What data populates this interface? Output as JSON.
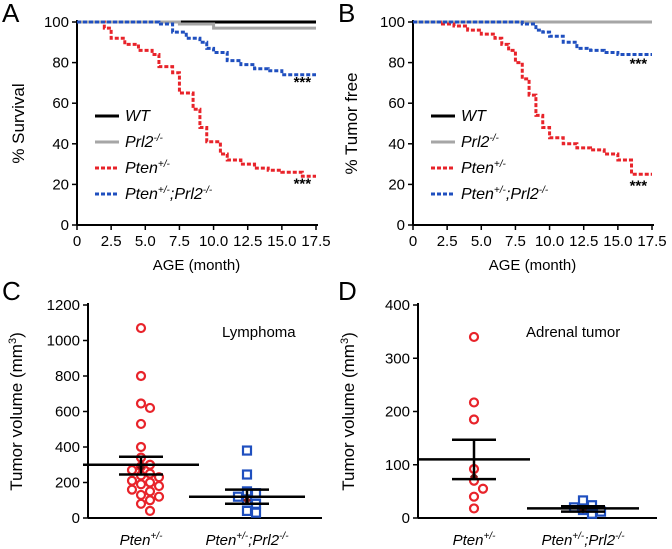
{
  "chart_data": [
    {
      "panel": "A",
      "type": "line",
      "step": true,
      "xlabel": "AGE (month)",
      "ylabel": "% Survival",
      "xlim": [
        0,
        17.5
      ],
      "ylim": [
        0,
        100
      ],
      "xticks": [
        "0",
        "2.5",
        "5.0",
        "7.5",
        "10.0",
        "12.5",
        "15.0",
        "17.5"
      ],
      "yticks": [
        "0",
        "20",
        "40",
        "60",
        "80",
        "100"
      ],
      "legend_position": "bottom-left",
      "series": [
        {
          "name": "WT",
          "label_main": "WT",
          "color": "#000000",
          "dash": "solid",
          "x": [
            0,
            17.5
          ],
          "y": [
            100,
            100
          ]
        },
        {
          "name": "Prl2-/-",
          "label_main": "Prl2",
          "label_sup": "-/-",
          "color": "#a6a6a6",
          "dash": "solid",
          "x": [
            0,
            7.5,
            10,
            17.5
          ],
          "y": [
            100,
            99,
            97,
            97
          ]
        },
        {
          "name": "Pten+/-",
          "label_main": "Pten",
          "label_sup": "+/-",
          "color": "#e8232a",
          "dash": "dashed",
          "x": [
            0,
            2,
            2.5,
            3.5,
            4.5,
            5.5,
            6,
            7,
            7.5,
            8.5,
            9,
            9.5,
            10.5,
            11,
            12,
            13,
            14,
            15,
            16.5,
            17.5
          ],
          "y": [
            100,
            97,
            92,
            89,
            86,
            84,
            78,
            75,
            65,
            57,
            48,
            41,
            35,
            32,
            30,
            28,
            27,
            26,
            24,
            24
          ]
        },
        {
          "name": "Pten+/-;Prl2-/-",
          "label_main": "Pten",
          "label_sup": "+/-",
          "label_main2": ";Prl2",
          "label_sup2": "-/-",
          "color": "#1f4fbf",
          "dash": "dashed",
          "x": [
            0,
            6,
            7,
            8,
            9,
            9.5,
            10,
            11,
            12,
            13,
            14,
            15,
            17.5
          ],
          "y": [
            100,
            99,
            95,
            92,
            90,
            87,
            85,
            81,
            79,
            77,
            76,
            74,
            74
          ]
        }
      ],
      "annotations": [
        {
          "text": "***",
          "x": 16.5,
          "y": 68
        },
        {
          "text": "***",
          "x": 16.5,
          "y": 18
        }
      ]
    },
    {
      "panel": "B",
      "type": "line",
      "step": true,
      "xlabel": "AGE (month)",
      "ylabel": "% Tumor free",
      "xlim": [
        0,
        17.5
      ],
      "ylim": [
        0,
        100
      ],
      "xticks": [
        "0",
        "2.5",
        "5.0",
        "7.5",
        "10.0",
        "12.5",
        "15.0",
        "17.5"
      ],
      "yticks": [
        "0",
        "20",
        "40",
        "60",
        "80",
        "100"
      ],
      "legend_position": "bottom-left",
      "series": [
        {
          "name": "WT",
          "label_main": "WT",
          "color": "#000000",
          "dash": "solid",
          "x": [
            0,
            17.5
          ],
          "y": [
            100,
            100
          ]
        },
        {
          "name": "Prl2-/-",
          "label_main": "Prl2",
          "label_sup": "-/-",
          "color": "#a6a6a6",
          "dash": "solid",
          "x": [
            0,
            17.5
          ],
          "y": [
            100,
            100
          ]
        },
        {
          "name": "Pten+/-",
          "label_main": "Pten",
          "label_sup": "+/-",
          "color": "#e8232a",
          "dash": "dashed",
          "x": [
            0,
            2,
            3,
            4,
            5,
            6,
            6.5,
            7,
            7.5,
            8,
            8.5,
            9,
            9.5,
            10,
            11,
            12,
            13,
            14,
            15,
            16,
            17.5
          ],
          "y": [
            100,
            99,
            98,
            96,
            94,
            92,
            89,
            86,
            80,
            72,
            64,
            54,
            48,
            43,
            40,
            38,
            37,
            35,
            32,
            25,
            25
          ]
        },
        {
          "name": "Pten+/-;Prl2-/-",
          "label_main": "Pten",
          "label_sup": "+/-",
          "label_main2": ";Prl2",
          "label_sup2": "-/-",
          "color": "#1f4fbf",
          "dash": "dashed",
          "x": [
            0,
            8,
            9,
            9.5,
            10,
            11,
            12,
            13,
            14,
            15,
            17.5
          ],
          "y": [
            100,
            99,
            96,
            95,
            93,
            90,
            87,
            86,
            85,
            84,
            84
          ]
        }
      ],
      "annotations": [
        {
          "text": "***",
          "x": 16.5,
          "y": 77
        },
        {
          "text": "***",
          "x": 16.5,
          "y": 17
        }
      ]
    },
    {
      "panel": "C",
      "type": "scatter",
      "title": "Lymphoma",
      "ylabel_main": "Tumor volume (mm",
      "ylabel_sup": "3",
      "ylabel_end": ")",
      "ylim": [
        0,
        1200
      ],
      "yticks": [
        "0",
        "200",
        "400",
        "600",
        "800",
        "1000",
        "1200"
      ],
      "categories": [
        {
          "label_main": "Pten",
          "label_sup": "+/-"
        },
        {
          "label_main": "Pten",
          "label_sup": "+/-",
          "label_main2": ";Prl2",
          "label_sup2": "-/-"
        }
      ],
      "groups": [
        {
          "name": "Pten+/-",
          "color": "#e8232a",
          "marker": "circle",
          "mean": 300,
          "sem_low": 245,
          "sem_high": 345,
          "median": 285,
          "values": [
            1070,
            800,
            645,
            620,
            530,
            400,
            340,
            300,
            290,
            270,
            250,
            240,
            230,
            210,
            200,
            190,
            180,
            160,
            150,
            130,
            120,
            100,
            80,
            40
          ]
        },
        {
          "name": "Pten+/-;Prl2-/-",
          "color": "#1f4fbf",
          "marker": "square",
          "mean": 120,
          "sem_low": 80,
          "sem_high": 160,
          "median": 100,
          "values": [
            380,
            245,
            150,
            140,
            120,
            100,
            80,
            40,
            30
          ]
        }
      ]
    },
    {
      "panel": "D",
      "type": "scatter",
      "title": "Adrenal tumor",
      "ylabel_main": "Tumor volume (mm",
      "ylabel_sup": "3",
      "ylabel_end": ")",
      "ylim": [
        0,
        400
      ],
      "yticks": [
        "0",
        "100",
        "200",
        "300",
        "400"
      ],
      "categories": [
        {
          "label_main": "Pten",
          "label_sup": "+/-"
        },
        {
          "label_main": "Pten",
          "label_sup": "+/-",
          "label_main2": ";Prl2",
          "label_sup2": "-/-"
        }
      ],
      "groups": [
        {
          "name": "Pten+/-",
          "color": "#e8232a",
          "marker": "circle",
          "mean": 110,
          "sem_low": 73,
          "sem_high": 147,
          "median": 78,
          "values": [
            340,
            217,
            185,
            92,
            70,
            55,
            40,
            18
          ]
        },
        {
          "name": "Pten+/-;Prl2-/-",
          "color": "#1f4fbf",
          "marker": "square",
          "mean": 18,
          "sem_low": 12,
          "sem_high": 22,
          "median": 16,
          "values": [
            33,
            24,
            20,
            15,
            12,
            8
          ]
        }
      ]
    }
  ],
  "panels": {
    "a": {
      "letter": "A"
    },
    "b": {
      "letter": "B"
    },
    "c": {
      "letter": "C"
    },
    "d": {
      "letter": "D"
    }
  }
}
